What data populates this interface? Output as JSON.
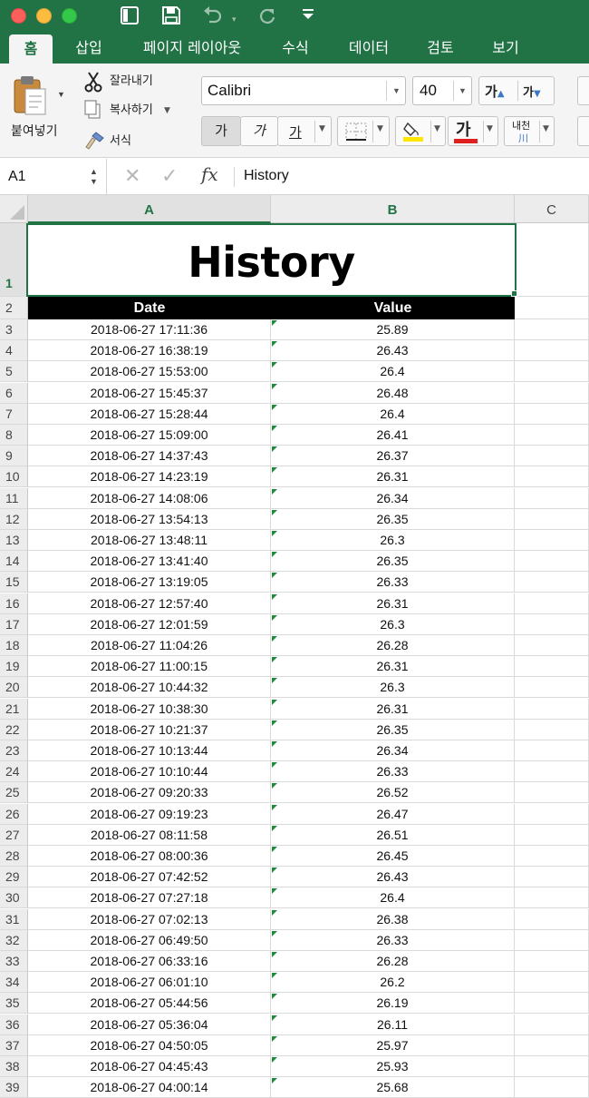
{
  "window": {
    "buttons": [
      "close-button",
      "minimize-button",
      "zoom-button"
    ]
  },
  "ribbon_tabs": [
    {
      "label": "홈",
      "active": true
    },
    {
      "label": "삽입",
      "active": false
    },
    {
      "label": "페이지 레이아웃",
      "active": false
    },
    {
      "label": "수식",
      "active": false
    },
    {
      "label": "데이터",
      "active": false
    },
    {
      "label": "검토",
      "active": false
    },
    {
      "label": "보기",
      "active": false
    }
  ],
  "clipboard": {
    "paste_label": "붙여넣기",
    "cut_label": "잘라내기",
    "copy_label": "복사하기",
    "format_painter_label": "서식"
  },
  "font": {
    "name": "Calibri",
    "size": "40",
    "grow_label": "가",
    "shrink_label": "가",
    "bold_label": "가",
    "italic_label": "가",
    "underline_label": "가",
    "font_color_label": "가",
    "font_color": "#e02020",
    "fill_color": "#ffe600",
    "phonetic_label_top": "내천",
    "phonetic_label_bottom": "川"
  },
  "formula_bar": {
    "name_box": "A1",
    "fx_label": "fx",
    "content": "History"
  },
  "sheet": {
    "columns": [
      "A",
      "B",
      "C"
    ],
    "selected_column": "A",
    "selected_row": "1",
    "title": "History",
    "headers": {
      "date": "Date",
      "value": "Value"
    },
    "rows": [
      {
        "n": "1"
      },
      {
        "n": "2"
      },
      {
        "n": "3",
        "date": "2018-06-27 17:11:36",
        "value": "25.89"
      },
      {
        "n": "4",
        "date": "2018-06-27 16:38:19",
        "value": "26.43"
      },
      {
        "n": "5",
        "date": "2018-06-27 15:53:00",
        "value": "26.4"
      },
      {
        "n": "6",
        "date": "2018-06-27 15:45:37",
        "value": "26.48"
      },
      {
        "n": "7",
        "date": "2018-06-27 15:28:44",
        "value": "26.4"
      },
      {
        "n": "8",
        "date": "2018-06-27 15:09:00",
        "value": "26.41"
      },
      {
        "n": "9",
        "date": "2018-06-27 14:37:43",
        "value": "26.37"
      },
      {
        "n": "10",
        "date": "2018-06-27 14:23:19",
        "value": "26.31"
      },
      {
        "n": "11",
        "date": "2018-06-27 14:08:06",
        "value": "26.34"
      },
      {
        "n": "12",
        "date": "2018-06-27 13:54:13",
        "value": "26.35"
      },
      {
        "n": "13",
        "date": "2018-06-27 13:48:11",
        "value": "26.3"
      },
      {
        "n": "14",
        "date": "2018-06-27 13:41:40",
        "value": "26.35"
      },
      {
        "n": "15",
        "date": "2018-06-27 13:19:05",
        "value": "26.33"
      },
      {
        "n": "16",
        "date": "2018-06-27 12:57:40",
        "value": "26.31"
      },
      {
        "n": "17",
        "date": "2018-06-27 12:01:59",
        "value": "26.3"
      },
      {
        "n": "18",
        "date": "2018-06-27 11:04:26",
        "value": "26.28"
      },
      {
        "n": "19",
        "date": "2018-06-27 11:00:15",
        "value": "26.31"
      },
      {
        "n": "20",
        "date": "2018-06-27 10:44:32",
        "value": "26.3"
      },
      {
        "n": "21",
        "date": "2018-06-27 10:38:30",
        "value": "26.31"
      },
      {
        "n": "22",
        "date": "2018-06-27 10:21:37",
        "value": "26.35"
      },
      {
        "n": "23",
        "date": "2018-06-27 10:13:44",
        "value": "26.34"
      },
      {
        "n": "24",
        "date": "2018-06-27 10:10:44",
        "value": "26.33"
      },
      {
        "n": "25",
        "date": "2018-06-27 09:20:33",
        "value": "26.52"
      },
      {
        "n": "26",
        "date": "2018-06-27 09:19:23",
        "value": "26.47"
      },
      {
        "n": "27",
        "date": "2018-06-27 08:11:58",
        "value": "26.51"
      },
      {
        "n": "28",
        "date": "2018-06-27 08:00:36",
        "value": "26.45"
      },
      {
        "n": "29",
        "date": "2018-06-27 07:42:52",
        "value": "26.43"
      },
      {
        "n": "30",
        "date": "2018-06-27 07:27:18",
        "value": "26.4"
      },
      {
        "n": "31",
        "date": "2018-06-27 07:02:13",
        "value": "26.38"
      },
      {
        "n": "32",
        "date": "2018-06-27 06:49:50",
        "value": "26.33"
      },
      {
        "n": "33",
        "date": "2018-06-27 06:33:16",
        "value": "26.28"
      },
      {
        "n": "34",
        "date": "2018-06-27 06:01:10",
        "value": "26.2"
      },
      {
        "n": "35",
        "date": "2018-06-27 05:44:56",
        "value": "26.19"
      },
      {
        "n": "36",
        "date": "2018-06-27 05:36:04",
        "value": "26.11"
      },
      {
        "n": "37",
        "date": "2018-06-27 04:50:05",
        "value": "25.97"
      },
      {
        "n": "38",
        "date": "2018-06-27 04:45:43",
        "value": "25.93"
      },
      {
        "n": "39",
        "date": "2018-06-27 04:00:14",
        "value": "25.68"
      }
    ]
  },
  "colors": {
    "accent": "#217346",
    "header_fill": "#000000",
    "header_text": "#ffffff"
  }
}
